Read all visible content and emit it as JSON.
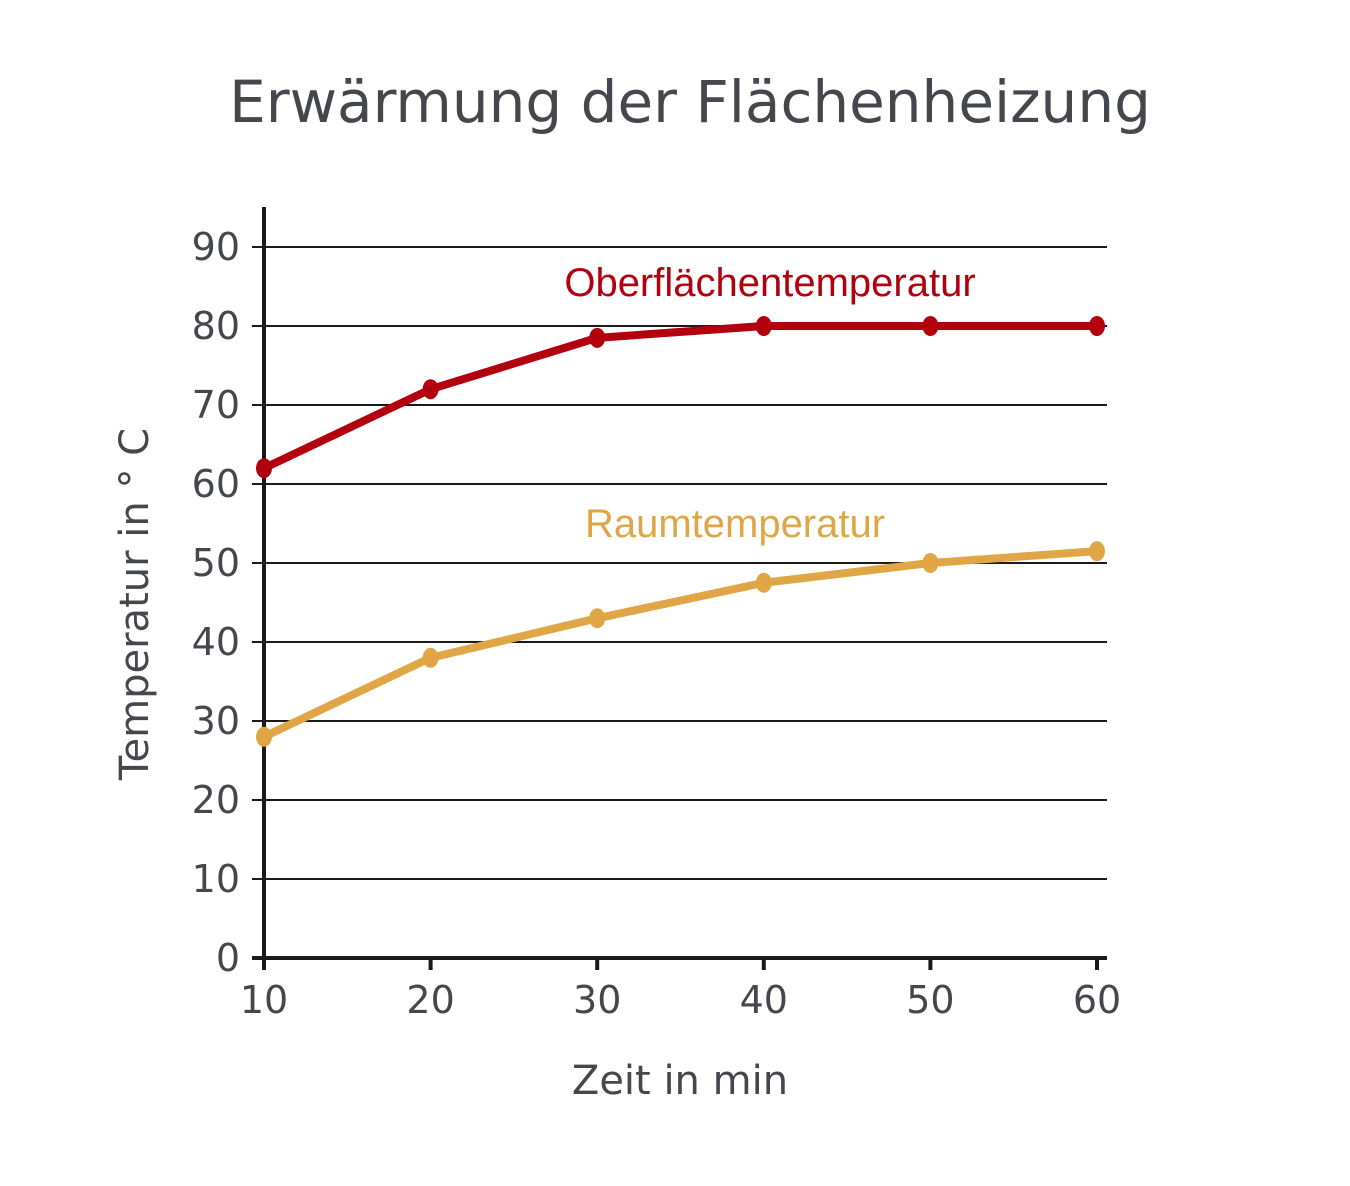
{
  "chart_data": {
    "type": "line",
    "title": "Erwärmung der Flächenheizung",
    "xlabel": "Zeit in min",
    "ylabel": "Temperatur in ° C",
    "x": [
      10,
      20,
      30,
      40,
      50,
      60
    ],
    "x_ticks": [
      "10",
      "20",
      "30",
      "40",
      "50",
      "60"
    ],
    "y_ticks": [
      "0",
      "10",
      "20",
      "30",
      "40",
      "50",
      "60",
      "70",
      "80",
      "90"
    ],
    "xlim": [
      10,
      60
    ],
    "ylim": [
      0,
      90
    ],
    "grid": true,
    "series": [
      {
        "name": "Oberflächentemperatur",
        "color": "#b3000f",
        "values": [
          62,
          72,
          78.5,
          80,
          80,
          80
        ]
      },
      {
        "name": "Raumtemperatur",
        "color": "#e0a646",
        "values": [
          28,
          38,
          43,
          47.5,
          50,
          51.5
        ]
      }
    ]
  }
}
